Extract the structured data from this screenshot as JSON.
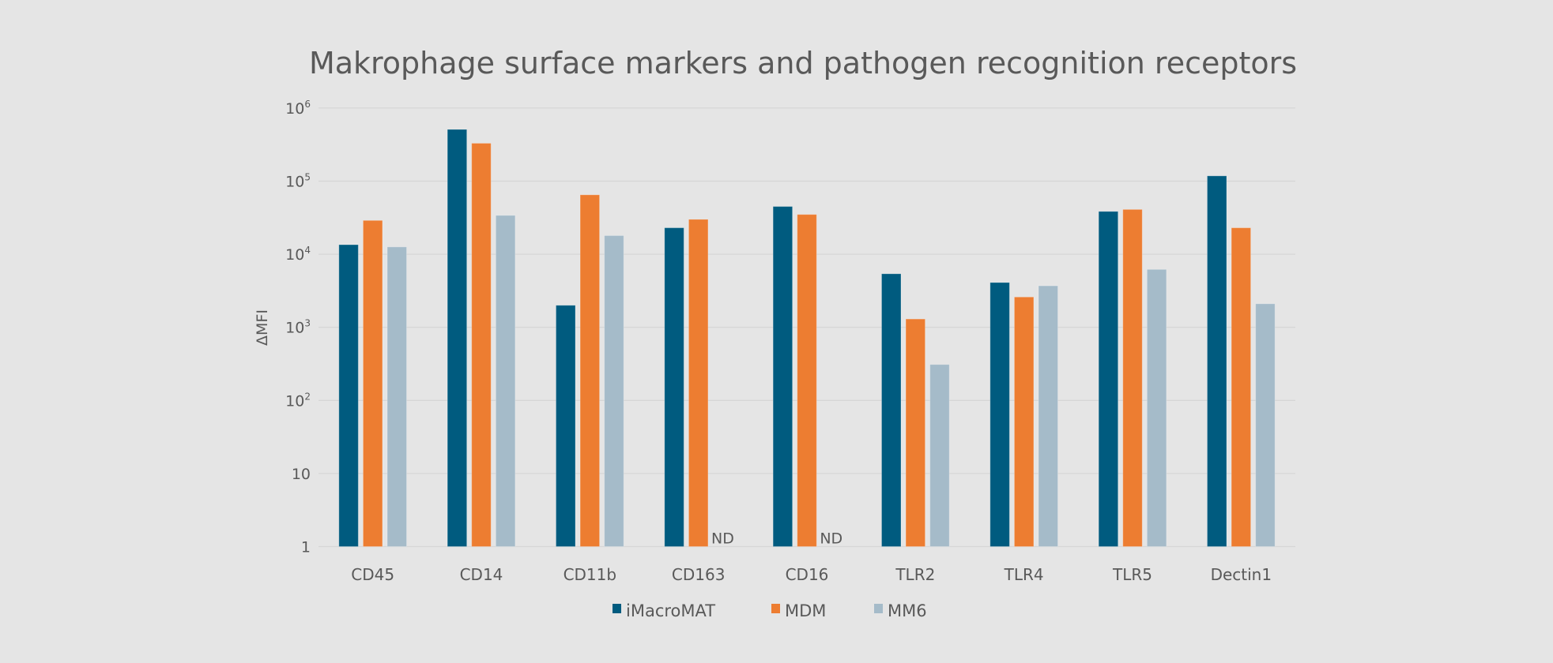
{
  "chart_data": {
    "type": "bar",
    "title": "Makrophage surface markers and pathogen recognition receptors",
    "xlabel": "",
    "ylabel": "ΔMFI",
    "yscale": "log",
    "ylim": [
      1,
      1000000
    ],
    "yticks": [
      {
        "value": 1,
        "base": "1",
        "exp": ""
      },
      {
        "value": 10,
        "base": "10",
        "exp": ""
      },
      {
        "value": 100,
        "base": "10",
        "exp": "2"
      },
      {
        "value": 1000,
        "base": "10",
        "exp": "3"
      },
      {
        "value": 10000,
        "base": "10",
        "exp": "4"
      },
      {
        "value": 100000,
        "base": "10",
        "exp": "5"
      },
      {
        "value": 1000000,
        "base": "10",
        "exp": "6"
      }
    ],
    "grid": true,
    "legend_position": "bottom",
    "categories": [
      "CD45",
      "CD14",
      "CD11b",
      "CD163",
      "CD16",
      "TLR2",
      "TLR4",
      "TLR5",
      "Dectin1"
    ],
    "series": [
      {
        "name": "iMacroMAT",
        "color": "#005b7f",
        "values": [
          13500,
          510000,
          2000,
          23000,
          45000,
          5400,
          4100,
          38500,
          118000
        ]
      },
      {
        "name": "MDM",
        "color": "#ed7d31",
        "values": [
          29000,
          330000,
          65000,
          30000,
          35000,
          1300,
          2600,
          41000,
          23000
        ]
      },
      {
        "name": "MM6",
        "color": "#a5bbc9",
        "values": [
          12600,
          34000,
          18000,
          null,
          null,
          310,
          3700,
          6200,
          2100
        ]
      }
    ],
    "annotations": [
      {
        "category": "CD163",
        "series": "MM6",
        "text": "ND"
      },
      {
        "category": "CD16",
        "series": "MM6",
        "text": "ND"
      }
    ]
  }
}
